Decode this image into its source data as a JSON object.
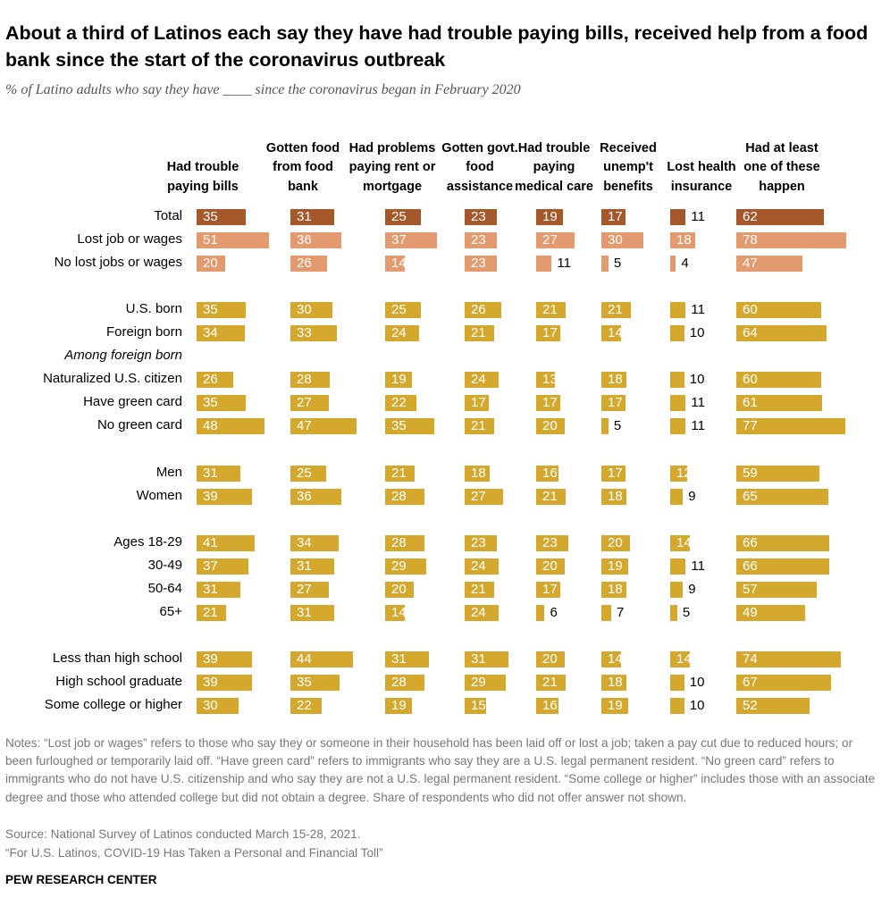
{
  "chart_data": {
    "type": "bar",
    "title": "About a third of Latinos each say they have had trouble paying bills, received help from a food bank since the start of the coronavirus outbreak",
    "subtitle": "% of Latino adults who say they have ____ since the coronavirus began in February 2020",
    "categories": [
      "Total",
      "Lost job or wages",
      "No lost jobs or wages",
      null,
      "U.S. born",
      "Foreign born",
      "Among foreign born",
      "Naturalized U.S. citizen",
      "Have green card",
      "No green card",
      null,
      "Men",
      "Women",
      null,
      "Ages 18-29",
      "30-49",
      "50-64",
      "65+",
      null,
      "Less than high school",
      "High school graduate",
      "Some college or higher"
    ],
    "category_colors": [
      "#a5582a",
      "#e39a6e",
      "#e39a6e",
      null,
      "#d4a82c",
      "#d4a82c",
      null,
      "#d4a82c",
      "#d4a82c",
      "#d4a82c",
      null,
      "#d4a82c",
      "#d4a82c",
      null,
      "#d4a82c",
      "#d4a82c",
      "#d4a82c",
      "#d4a82c",
      null,
      "#d4a82c",
      "#d4a82c",
      "#d4a82c"
    ],
    "series": [
      {
        "name": "Had trouble paying bills",
        "values": [
          35,
          51,
          20,
          null,
          35,
          34,
          null,
          26,
          35,
          48,
          null,
          31,
          39,
          null,
          41,
          37,
          31,
          21,
          null,
          39,
          39,
          30
        ]
      },
      {
        "name": "Gotten food from food bank",
        "values": [
          31,
          36,
          26,
          null,
          30,
          33,
          null,
          28,
          27,
          47,
          null,
          25,
          36,
          null,
          34,
          31,
          27,
          31,
          null,
          44,
          35,
          22
        ]
      },
      {
        "name": "Had problems paying rent or mortgage",
        "values": [
          25,
          37,
          14,
          null,
          25,
          24,
          null,
          19,
          22,
          35,
          null,
          21,
          28,
          null,
          28,
          29,
          20,
          14,
          null,
          31,
          28,
          19
        ]
      },
      {
        "name": "Gotten govt. food assistance",
        "values": [
          23,
          23,
          23,
          null,
          26,
          21,
          null,
          24,
          17,
          21,
          null,
          18,
          27,
          null,
          23,
          24,
          21,
          24,
          null,
          31,
          29,
          15
        ]
      },
      {
        "name": "Had trouble paying medical care",
        "values": [
          19,
          27,
          11,
          null,
          21,
          17,
          null,
          13,
          17,
          20,
          null,
          16,
          21,
          null,
          23,
          20,
          17,
          6,
          null,
          20,
          21,
          16
        ]
      },
      {
        "name": "Received unemp't benefits",
        "values": [
          17,
          30,
          5,
          null,
          21,
          14,
          null,
          18,
          17,
          5,
          null,
          17,
          18,
          null,
          20,
          19,
          18,
          7,
          null,
          14,
          18,
          19
        ]
      },
      {
        "name": "Lost health insurance",
        "values": [
          11,
          18,
          4,
          null,
          11,
          10,
          null,
          10,
          11,
          11,
          null,
          12,
          9,
          null,
          14,
          11,
          9,
          5,
          null,
          14,
          10,
          10
        ]
      },
      {
        "name": "Had at least one of these happen",
        "values": [
          62,
          78,
          47,
          null,
          60,
          64,
          null,
          60,
          61,
          77,
          null,
          59,
          65,
          null,
          66,
          66,
          57,
          49,
          null,
          74,
          67,
          52
        ]
      }
    ],
    "notes": "Notes: “Lost job or wages” refers to those who say they or someone in their household has been laid off or lost a job; taken a pay cut due to reduced hours; or been furloughed or temporarily laid off. “Have green card” refers to immigrants who say they are a U.S. legal permanent resident. “No green card” refers to immigrants who do not have U.S. citizenship and who say they are not a U.S. legal permanent resident. “Some college or higher” includes those with an associate degree and those who attended college but did not obtain a degree. Share of respondents who did not offer answer not shown.",
    "source": "Source: National Survey of Latinos conducted March 15-28, 2021.",
    "report": "“For U.S. Latinos, COVID-19 Has Taken a Personal and Financial Toll”",
    "credit": "PEW RESEARCH CENTER"
  }
}
